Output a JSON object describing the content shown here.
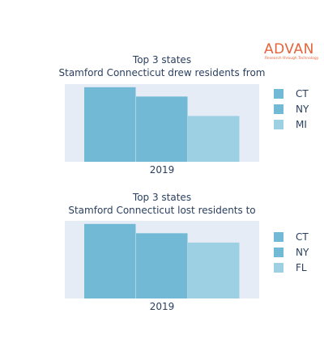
{
  "logo": {
    "word": "ADVAN",
    "tagline": "Research through Technology"
  },
  "chart_data": [
    {
      "type": "bar",
      "title": "Top 3 states",
      "subtitle": "Stamford Connecticut drew residents from",
      "categories": [
        "2019"
      ],
      "series": [
        {
          "name": "CT",
          "values": [
            96
          ],
          "color": "#72b9d5"
        },
        {
          "name": "NY",
          "values": [
            84
          ],
          "color": "#72b9d5"
        },
        {
          "name": "MI",
          "values": [
            59
          ],
          "color": "#9ed0e3"
        }
      ],
      "xlabel": "",
      "ylabel": "",
      "ylim": [
        0,
        100
      ],
      "grid": false,
      "legend": "right"
    },
    {
      "type": "bar",
      "title": "Top 3 states",
      "subtitle": "Stamford Connecticut lost residents to",
      "categories": [
        "2019"
      ],
      "series": [
        {
          "name": "CT",
          "values": [
            96
          ],
          "color": "#72b9d5"
        },
        {
          "name": "NY",
          "values": [
            84
          ],
          "color": "#72b9d5"
        },
        {
          "name": "FL",
          "values": [
            72
          ],
          "color": "#9ed0e3"
        }
      ],
      "xlabel": "",
      "ylabel": "",
      "ylim": [
        0,
        100
      ],
      "grid": false,
      "legend": "right"
    }
  ]
}
